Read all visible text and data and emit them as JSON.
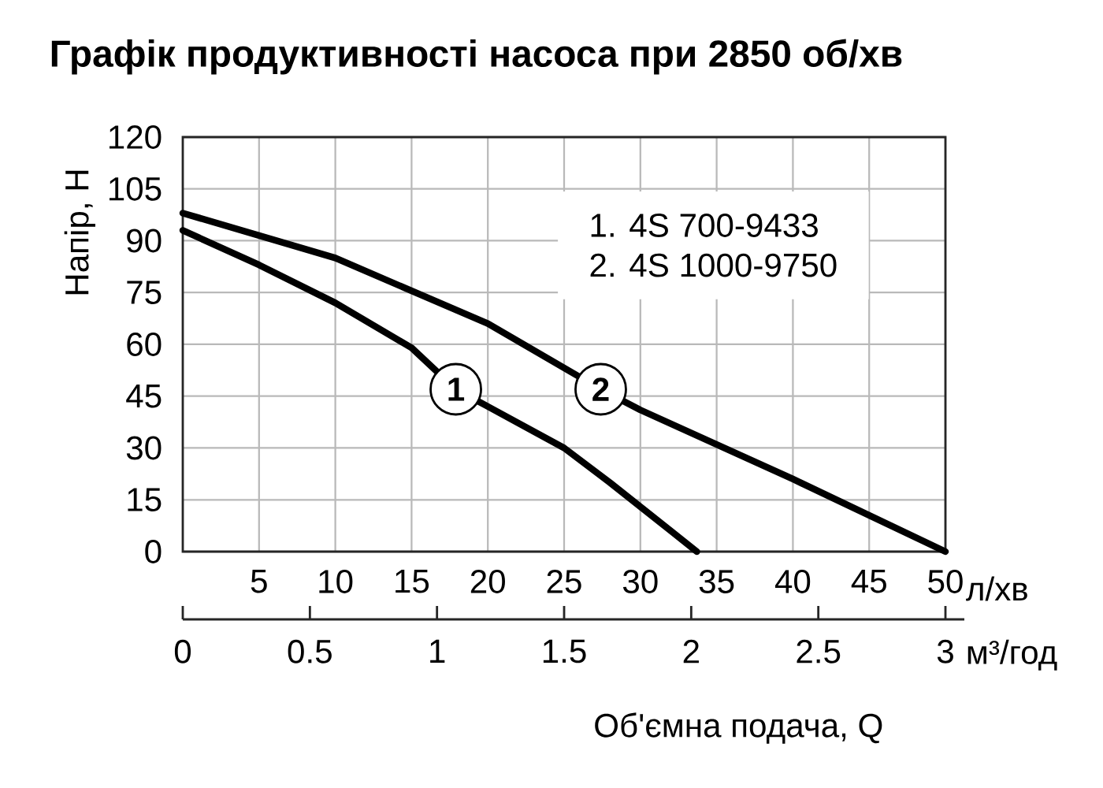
{
  "chart_data": {
    "type": "line",
    "title": "Графік продуктивності насоса при 2850 об/хв",
    "xlabel": "л/хв",
    "x2label": "м³/год",
    "ylabel": "Напір, Н",
    "xlim": [
      0,
      50
    ],
    "xticks": [
      5,
      10,
      15,
      20,
      25,
      30,
      35,
      40,
      45,
      50
    ],
    "x2lim": [
      0,
      3
    ],
    "x2ticks": [
      0,
      0.5,
      1,
      1.5,
      2,
      2.5,
      3
    ],
    "ylim": [
      0,
      120
    ],
    "yticks": [
      0,
      15,
      30,
      45,
      60,
      75,
      90,
      105,
      120
    ],
    "grid": true,
    "line_style": "solid",
    "marker": "none",
    "series": [
      {
        "color": "#000000",
        "x": [
          0,
          5,
          10,
          15,
          17.9,
          20,
          25,
          28,
          30,
          32,
          33.7
        ],
        "values": [
          93,
          83,
          72,
          59,
          47,
          42,
          30,
          20,
          13,
          6,
          0
        ]
      },
      {
        "color": "#000000",
        "x": [
          0,
          10,
          20,
          27.4,
          30,
          40,
          50
        ],
        "values": [
          98,
          85,
          66,
          47,
          41,
          21,
          0
        ]
      }
    ],
    "annotations": [
      {
        "text": "1",
        "x": 17.9,
        "y": 47
      },
      {
        "text": "2",
        "x": 27.4,
        "y": 47
      },
      "1. 4S 700-9433",
      "2. 4S 1000-9750",
      "Об'ємна подача, Q"
    ]
  }
}
